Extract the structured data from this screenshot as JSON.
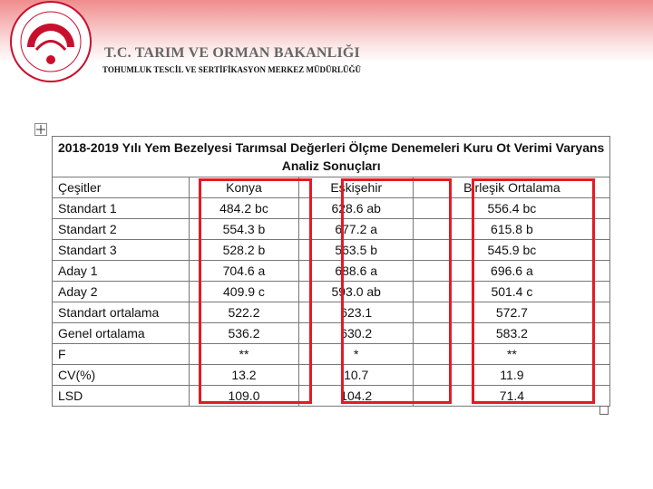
{
  "header": {
    "title": "T.C. TARIM VE ORMAN BAKANLIĞI",
    "subtitle": "TOHUMLUK TESCİL VE SERTİFİKASYON MERKEZ MÜDÜRLÜĞÜ"
  },
  "table": {
    "title": [
      "2018-2019 Yılı Yem Bezelyesi Tarımsal Değerleri Ölçme Denemeleri Kuru Ot Verimi Varyans",
      "Analiz Sonuçları"
    ],
    "columns": [
      "Çeşitler",
      "Konya",
      "Eskişehir",
      "Birleşik Ortalama"
    ],
    "rows": [
      [
        "Standart 1",
        "484.2 bc",
        "628.6 ab",
        "556.4 bc"
      ],
      [
        "Standart 2",
        "554.3 b",
        "677.2 a",
        "615.8 b"
      ],
      [
        "Standart 3",
        "528.2 b",
        "563.5 b",
        "545.9 bc"
      ],
      [
        "Aday 1",
        "704.6 a",
        "688.6 a",
        "696.6 a"
      ],
      [
        "Aday 2",
        "409.9 c",
        "593.0 ab",
        "501.4 c"
      ],
      [
        "Standart ortalama",
        "522.2",
        "623.1",
        "572.7"
      ],
      [
        "Genel ortalama",
        "536.2",
        "630.2",
        "583.2"
      ],
      [
        "F",
        "**",
        "*",
        "**"
      ],
      [
        "CV(%)",
        "13.2",
        "10.7",
        "11.9"
      ],
      [
        "LSD",
        "109.0",
        "104.2",
        "71.4"
      ]
    ]
  }
}
